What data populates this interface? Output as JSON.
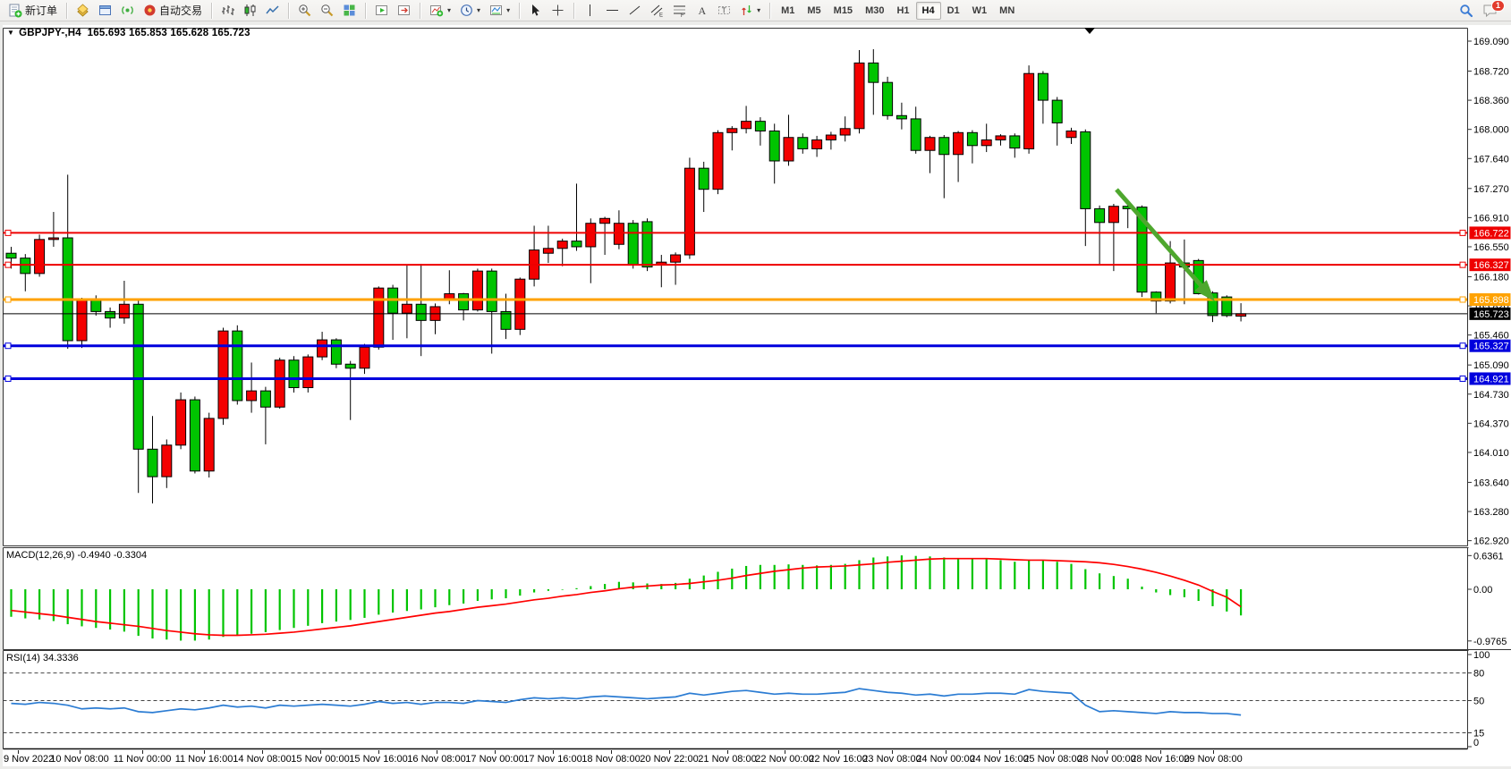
{
  "toolbar": {
    "new_order": "新订单",
    "autotrade": "自动交易",
    "notification_count": "1",
    "active_timeframe": "H4",
    "timeframes": [
      "M1",
      "M5",
      "M15",
      "M30",
      "H1",
      "H4",
      "D1",
      "W1",
      "MN"
    ],
    "items": [
      {
        "type": "button",
        "name": "new-order-button",
        "icon": "new-order-icon",
        "label": "新订单"
      },
      {
        "type": "sep"
      },
      {
        "type": "button",
        "name": "market-watch-button",
        "icon": "market-watch-icon"
      },
      {
        "type": "button",
        "name": "data-window-button",
        "icon": "data-window-icon"
      },
      {
        "type": "button",
        "name": "signals-button",
        "icon": "signals-icon"
      },
      {
        "type": "button",
        "name": "autotrade-button",
        "icon": "autotrade-icon",
        "label": "自动交易"
      },
      {
        "type": "sep"
      },
      {
        "type": "button",
        "name": "bar-chart-button",
        "icon": "bar-chart-icon"
      },
      {
        "type": "button",
        "name": "candlestick-button",
        "icon": "candlestick-icon"
      },
      {
        "type": "button",
        "name": "line-chart-button",
        "icon": "line-chart-icon"
      },
      {
        "type": "sep"
      },
      {
        "type": "button",
        "name": "zoom-in-button",
        "icon": "zoom-in-icon"
      },
      {
        "type": "button",
        "name": "zoom-out-button",
        "icon": "zoom-out-icon"
      },
      {
        "type": "button",
        "name": "tile-windows-button",
        "icon": "tile-windows-icon"
      },
      {
        "type": "sep"
      },
      {
        "type": "button",
        "name": "auto-scroll-button",
        "icon": "auto-scroll-icon"
      },
      {
        "type": "button",
        "name": "chart-shift-button",
        "icon": "chart-shift-icon"
      },
      {
        "type": "sep"
      },
      {
        "type": "button",
        "name": "indicators-button",
        "icon": "indicators-icon",
        "caret": true
      },
      {
        "type": "button",
        "name": "periods-button",
        "icon": "periods-icon",
        "caret": true
      },
      {
        "type": "button",
        "name": "templates-button",
        "icon": "templates-icon",
        "caret": true
      },
      {
        "type": "sep"
      },
      {
        "type": "button",
        "name": "cursor-button",
        "icon": "cursor-icon"
      },
      {
        "type": "button",
        "name": "crosshair-button",
        "icon": "crosshair-icon"
      },
      {
        "type": "sep"
      },
      {
        "type": "button",
        "name": "vertical-line-button",
        "icon": "vline-icon"
      },
      {
        "type": "button",
        "name": "horizontal-line-button",
        "icon": "hline-icon"
      },
      {
        "type": "button",
        "name": "trendline-button",
        "icon": "trendline-icon"
      },
      {
        "type": "button",
        "name": "equidistant-channel-button",
        "icon": "channel-icon"
      },
      {
        "type": "button",
        "name": "fibonacci-button",
        "icon": "fibonacci-icon"
      },
      {
        "type": "button",
        "name": "text-button",
        "icon": "text-icon"
      },
      {
        "type": "button",
        "name": "label-button",
        "icon": "label-icon"
      },
      {
        "type": "button",
        "name": "arrows-button",
        "icon": "arrows-icon",
        "caret": true
      },
      {
        "type": "sep"
      }
    ]
  },
  "chart": {
    "title_symbol": "GBPJPY-,H4",
    "title_ohlc": "165.693 165.853 165.628 165.723",
    "price_axis": [
      "169.090",
      "168.720",
      "168.360",
      "168.000",
      "167.640",
      "167.270",
      "166.910",
      "166.550",
      "166.180",
      "165.820",
      "165.460",
      "165.090",
      "164.730",
      "164.370",
      "164.010",
      "163.640",
      "163.280",
      "162.920"
    ],
    "time_axis": [
      "9 Nov 2022",
      "10 Nov 08:00",
      "11 Nov 00:00",
      "11 Nov 16:00",
      "14 Nov 08:00",
      "15 Nov 00:00",
      "15 Nov 16:00",
      "16 Nov 08:00",
      "17 Nov 00:00",
      "17 Nov 16:00",
      "18 Nov 08:00",
      "20 Nov 22:00",
      "21 Nov 08:00",
      "22 Nov 00:00",
      "22 Nov 16:00",
      "23 Nov 08:00",
      "24 Nov 00:00",
      "24 Nov 16:00",
      "25 Nov 08:00",
      "28 Nov 00:00",
      "28 Nov 16:00",
      "29 Nov 08:00"
    ],
    "hlines": [
      {
        "label": "166.722",
        "value": 166.722,
        "color": "#ee0000",
        "width": 2,
        "handles": true
      },
      {
        "label": "166.327",
        "value": 166.327,
        "color": "#ee0000",
        "width": 2,
        "handles": true
      },
      {
        "label": "165.898",
        "value": 165.898,
        "color": "#ffa200",
        "width": 3,
        "handles": true
      },
      {
        "label": "165.723",
        "value": 165.723,
        "color": "#000000",
        "width": 1,
        "handles": false
      },
      {
        "label": "165.327",
        "value": 165.327,
        "color": "#0000dd",
        "width": 3,
        "handles": true
      },
      {
        "label": "164.921",
        "value": 164.921,
        "color": "#0000dd",
        "width": 3,
        "handles": true
      }
    ]
  },
  "chart_data": {
    "type": "candlestick",
    "symbol": "GBPJPY-",
    "timeframe": "H4",
    "x_range": "9 Nov 2022 - 29 Nov 2022",
    "ylim": [
      162.87,
      169.25
    ],
    "grid": false,
    "bull_color": "#f40000",
    "bear_color": "#00c400",
    "last_ohlc": {
      "open": 165.693,
      "high": 165.853,
      "low": 165.628,
      "close": 165.723
    },
    "horizontal_levels": [
      166.722,
      166.327,
      165.898,
      165.723,
      165.327,
      164.921
    ],
    "candles": [
      [
        166.47,
        166.55,
        166.28,
        166.41
      ],
      [
        166.41,
        166.46,
        166.0,
        166.22
      ],
      [
        166.22,
        166.7,
        166.18,
        166.64
      ],
      [
        166.64,
        166.98,
        166.55,
        166.66
      ],
      [
        166.66,
        167.44,
        165.29,
        165.39
      ],
      [
        165.39,
        165.92,
        165.3,
        165.89
      ],
      [
        165.89,
        165.95,
        165.7,
        165.75
      ],
      [
        165.75,
        165.8,
        165.55,
        165.67
      ],
      [
        165.67,
        166.13,
        165.6,
        165.84
      ],
      [
        165.84,
        165.9,
        163.51,
        164.05
      ],
      [
        164.05,
        164.46,
        163.38,
        163.71
      ],
      [
        163.71,
        164.17,
        163.57,
        164.1
      ],
      [
        164.1,
        164.75,
        164.05,
        164.66
      ],
      [
        164.66,
        164.7,
        163.75,
        163.78
      ],
      [
        163.78,
        164.5,
        163.7,
        164.43
      ],
      [
        164.43,
        165.55,
        164.35,
        165.51
      ],
      [
        165.51,
        165.58,
        164.6,
        164.65
      ],
      [
        164.65,
        165.12,
        164.5,
        164.77
      ],
      [
        164.77,
        164.82,
        164.11,
        164.57
      ],
      [
        164.57,
        165.18,
        164.55,
        165.15
      ],
      [
        165.15,
        165.2,
        164.75,
        164.81
      ],
      [
        164.81,
        165.22,
        164.75,
        165.19
      ],
      [
        165.19,
        165.5,
        165.15,
        165.4
      ],
      [
        165.4,
        165.42,
        165.05,
        165.1
      ],
      [
        165.1,
        165.14,
        164.41,
        165.05
      ],
      [
        165.05,
        165.35,
        164.98,
        165.31
      ],
      [
        165.31,
        166.06,
        165.28,
        166.04
      ],
      [
        166.04,
        166.08,
        165.4,
        165.73
      ],
      [
        165.73,
        166.32,
        165.42,
        165.84
      ],
      [
        165.84,
        166.34,
        165.2,
        165.64
      ],
      [
        165.64,
        165.85,
        165.47,
        165.81
      ],
      [
        165.9,
        166.26,
        165.84,
        165.97
      ],
      [
        165.97,
        165.98,
        165.64,
        165.77
      ],
      [
        165.77,
        166.28,
        165.75,
        166.25
      ],
      [
        166.25,
        166.28,
        165.23,
        165.75
      ],
      [
        165.75,
        165.97,
        165.41,
        165.53
      ],
      [
        165.53,
        166.17,
        165.46,
        166.15
      ],
      [
        166.15,
        166.81,
        166.06,
        166.51
      ],
      [
        166.47,
        166.81,
        166.35,
        166.53
      ],
      [
        166.53,
        166.65,
        166.31,
        166.62
      ],
      [
        166.62,
        167.33,
        166.5,
        166.55
      ],
      [
        166.55,
        166.9,
        166.1,
        166.84
      ],
      [
        166.84,
        166.92,
        166.45,
        166.9
      ],
      [
        166.58,
        167.0,
        166.52,
        166.84
      ],
      [
        166.84,
        166.88,
        166.28,
        166.33
      ],
      [
        166.86,
        166.9,
        166.25,
        166.3
      ],
      [
        166.33,
        166.45,
        166.05,
        166.36
      ],
      [
        166.36,
        166.48,
        166.08,
        166.45
      ],
      [
        166.45,
        167.65,
        166.4,
        167.52
      ],
      [
        167.52,
        167.6,
        166.98,
        167.26
      ],
      [
        167.26,
        167.99,
        167.2,
        167.96
      ],
      [
        167.96,
        168.04,
        167.74,
        168.01
      ],
      [
        168.01,
        168.29,
        167.95,
        168.1
      ],
      [
        168.1,
        168.15,
        167.8,
        167.98
      ],
      [
        167.98,
        168.07,
        167.33,
        167.61
      ],
      [
        167.61,
        168.18,
        167.55,
        167.9
      ],
      [
        167.9,
        167.95,
        167.7,
        167.76
      ],
      [
        167.76,
        167.92,
        167.66,
        167.87
      ],
      [
        167.87,
        167.97,
        167.75,
        167.93
      ],
      [
        167.93,
        168.16,
        167.85,
        168.01
      ],
      [
        168.01,
        168.98,
        167.95,
        168.82
      ],
      [
        168.82,
        168.99,
        168.18,
        168.58
      ],
      [
        168.58,
        168.65,
        168.12,
        168.17
      ],
      [
        168.17,
        168.33,
        168.0,
        168.13
      ],
      [
        168.13,
        168.28,
        167.7,
        167.74
      ],
      [
        167.74,
        167.92,
        167.46,
        167.9
      ],
      [
        167.9,
        167.93,
        167.15,
        167.69
      ],
      [
        167.69,
        167.98,
        167.35,
        167.96
      ],
      [
        167.96,
        167.99,
        167.58,
        167.8
      ],
      [
        167.8,
        168.07,
        167.72,
        167.87
      ],
      [
        167.87,
        167.94,
        167.8,
        167.92
      ],
      [
        167.92,
        167.95,
        167.65,
        167.77
      ],
      [
        167.76,
        168.79,
        167.7,
        168.69
      ],
      [
        168.69,
        168.72,
        168.07,
        168.36
      ],
      [
        168.36,
        168.4,
        167.8,
        168.08
      ],
      [
        167.9,
        168.02,
        167.82,
        167.98
      ],
      [
        167.97,
        168.0,
        166.56,
        167.02
      ],
      [
        167.02,
        167.06,
        166.32,
        166.85
      ],
      [
        166.85,
        167.08,
        166.25,
        167.05
      ],
      [
        167.05,
        167.08,
        166.78,
        167.02
      ],
      [
        167.04,
        167.06,
        165.93,
        165.99
      ],
      [
        165.99,
        166.0,
        165.73,
        165.88
      ],
      [
        165.88,
        166.62,
        165.85,
        166.35
      ],
      [
        166.35,
        166.64,
        165.84,
        166.3
      ],
      [
        166.38,
        166.4,
        165.96,
        165.97
      ],
      [
        165.98,
        166.0,
        165.62,
        165.7
      ],
      [
        165.93,
        165.95,
        165.68,
        165.7
      ],
      [
        165.693,
        165.853,
        165.628,
        165.723
      ]
    ],
    "macd": {
      "label": "MACD(12,26,9) -0.4940 -0.3304",
      "params": "12,26,9",
      "main_value": -0.494,
      "signal_value": -0.3304,
      "axis": [
        [
          "0.6361",
          0.6361
        ],
        [
          "0.00",
          0
        ],
        [
          "-0.9765",
          -0.9765
        ]
      ],
      "histogram_color": "#00c400",
      "signal_color": "#ff0000",
      "histogram": [
        -0.52,
        -0.55,
        -0.57,
        -0.6,
        -0.66,
        -0.7,
        -0.73,
        -0.76,
        -0.8,
        -0.88,
        -0.93,
        -0.95,
        -0.97,
        -0.97,
        -0.95,
        -0.9,
        -0.87,
        -0.84,
        -0.81,
        -0.77,
        -0.73,
        -0.69,
        -0.64,
        -0.61,
        -0.58,
        -0.54,
        -0.48,
        -0.44,
        -0.41,
        -0.38,
        -0.34,
        -0.3,
        -0.27,
        -0.22,
        -0.19,
        -0.17,
        -0.12,
        -0.06,
        -0.03,
        -0.01,
        0.02,
        0.06,
        0.1,
        0.14,
        0.13,
        0.11,
        0.1,
        0.12,
        0.2,
        0.26,
        0.33,
        0.39,
        0.44,
        0.46,
        0.46,
        0.47,
        0.46,
        0.45,
        0.46,
        0.48,
        0.55,
        0.6,
        0.62,
        0.64,
        0.63,
        0.62,
        0.6,
        0.59,
        0.58,
        0.57,
        0.55,
        0.52,
        0.56,
        0.55,
        0.52,
        0.48,
        0.38,
        0.3,
        0.25,
        0.2,
        0.05,
        -0.06,
        -0.11,
        -0.15,
        -0.22,
        -0.32,
        -0.42,
        -0.494
      ],
      "signal": [
        -0.4,
        -0.43,
        -0.46,
        -0.49,
        -0.53,
        -0.57,
        -0.61,
        -0.64,
        -0.67,
        -0.7,
        -0.74,
        -0.78,
        -0.81,
        -0.84,
        -0.86,
        -0.87,
        -0.87,
        -0.86,
        -0.85,
        -0.83,
        -0.81,
        -0.78,
        -0.75,
        -0.72,
        -0.69,
        -0.65,
        -0.61,
        -0.57,
        -0.53,
        -0.49,
        -0.45,
        -0.42,
        -0.38,
        -0.34,
        -0.31,
        -0.28,
        -0.24,
        -0.2,
        -0.17,
        -0.13,
        -0.1,
        -0.06,
        -0.03,
        0.01,
        0.04,
        0.06,
        0.08,
        0.09,
        0.11,
        0.14,
        0.17,
        0.21,
        0.26,
        0.3,
        0.34,
        0.37,
        0.4,
        0.42,
        0.43,
        0.44,
        0.46,
        0.48,
        0.51,
        0.53,
        0.55,
        0.57,
        0.58,
        0.58,
        0.58,
        0.58,
        0.57,
        0.56,
        0.55,
        0.55,
        0.54,
        0.53,
        0.52,
        0.5,
        0.47,
        0.43,
        0.38,
        0.32,
        0.25,
        0.17,
        0.08,
        -0.04,
        -0.15,
        -0.3304
      ]
    },
    "rsi": {
      "label": "RSI(14) 34.3336",
      "period": 14,
      "value": 34.3336,
      "levels": [
        80,
        50,
        15
      ],
      "axis": [
        [
          "100",
          100
        ],
        [
          "80",
          80
        ],
        [
          "50",
          50
        ],
        [
          "15",
          15
        ],
        [
          "0",
          0
        ]
      ],
      "line_color": "#2b7cd3",
      "series": [
        47,
        46,
        48,
        47,
        45,
        41,
        42,
        41,
        42,
        38,
        37,
        39,
        41,
        40,
        42,
        45,
        43,
        44,
        42,
        45,
        44,
        45,
        46,
        45,
        44,
        46,
        49,
        47,
        48,
        46,
        48,
        48,
        47,
        50,
        49,
        48,
        51,
        53,
        52,
        53,
        52,
        54,
        55,
        54,
        53,
        52,
        53,
        54,
        58,
        56,
        58,
        60,
        61,
        59,
        57,
        58,
        57,
        57,
        58,
        59,
        63,
        61,
        59,
        58,
        56,
        57,
        55,
        57,
        57,
        58,
        58,
        57,
        62,
        60,
        59,
        58,
        45,
        38,
        39,
        38,
        37,
        36,
        38,
        37,
        37,
        36,
        36,
        34.3336
      ]
    },
    "annotation_arrow": {
      "direction": "down-right",
      "color": "#4ea72e",
      "from_price": 167.05,
      "to_price": 165.55
    }
  }
}
